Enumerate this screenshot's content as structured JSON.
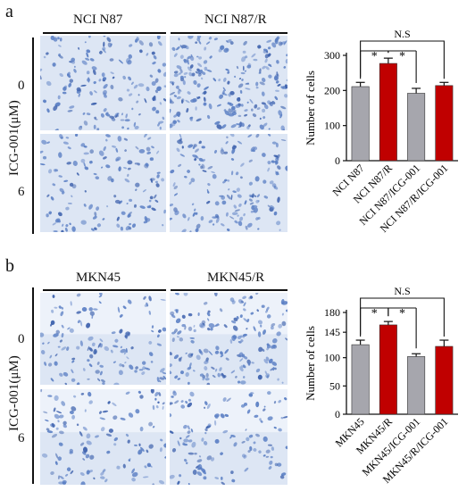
{
  "panels": [
    {
      "letter": "a",
      "columns": [
        "NCI N87",
        "NCI N87/R"
      ],
      "rows": [
        "0",
        "6"
      ],
      "row_axis_label": "ICG-001(μM)"
    },
    {
      "letter": "b",
      "columns": [
        "MKN45",
        "MKN45/R"
      ],
      "rows": [
        "0",
        "6"
      ],
      "row_axis_label": "ICG-001(μM)"
    }
  ],
  "colors": {
    "gray_bar": "#a6a6ad",
    "red_bar": "#c00000",
    "cells": "#5b7fc4",
    "field": "#dde6f4"
  },
  "chart_data": [
    {
      "type": "bar",
      "categories": [
        "NCI N87",
        "NCI N87/R",
        "NCI N87/ICG-001",
        "NCI N87/R/ICG-001"
      ],
      "values": [
        211,
        277,
        192,
        214
      ],
      "errors": [
        12,
        15,
        14,
        9
      ],
      "bar_colors": [
        "#a6a6ad",
        "#c00000",
        "#a6a6ad",
        "#c00000"
      ],
      "ylabel": "Number of cells",
      "ylim": [
        0,
        300
      ],
      "yticks": [
        0,
        100,
        200,
        300
      ],
      "annotations": {
        "star_pairs": [
          [
            0,
            1
          ],
          [
            1,
            2
          ]
        ],
        "star_label": "*",
        "ns_pair": [
          0,
          3
        ],
        "ns_label": "N.S"
      }
    },
    {
      "type": "bar",
      "categories": [
        "MKN45",
        "MKN45/R",
        "MKN45/ICG-001",
        "MKN45/R/ICG-001"
      ],
      "values": [
        123,
        158,
        102,
        120
      ],
      "errors": [
        8,
        6,
        5,
        11
      ],
      "bar_colors": [
        "#a6a6ad",
        "#c00000",
        "#a6a6ad",
        "#c00000"
      ],
      "ylabel": "Number of cells",
      "ylim": [
        0,
        180
      ],
      "yticks": [
        0,
        50,
        100,
        145,
        180
      ],
      "annotations": {
        "star_pairs": [
          [
            0,
            1
          ],
          [
            1,
            2
          ]
        ],
        "star_label": "*",
        "ns_pair": [
          0,
          3
        ],
        "ns_label": "N.S"
      }
    }
  ]
}
